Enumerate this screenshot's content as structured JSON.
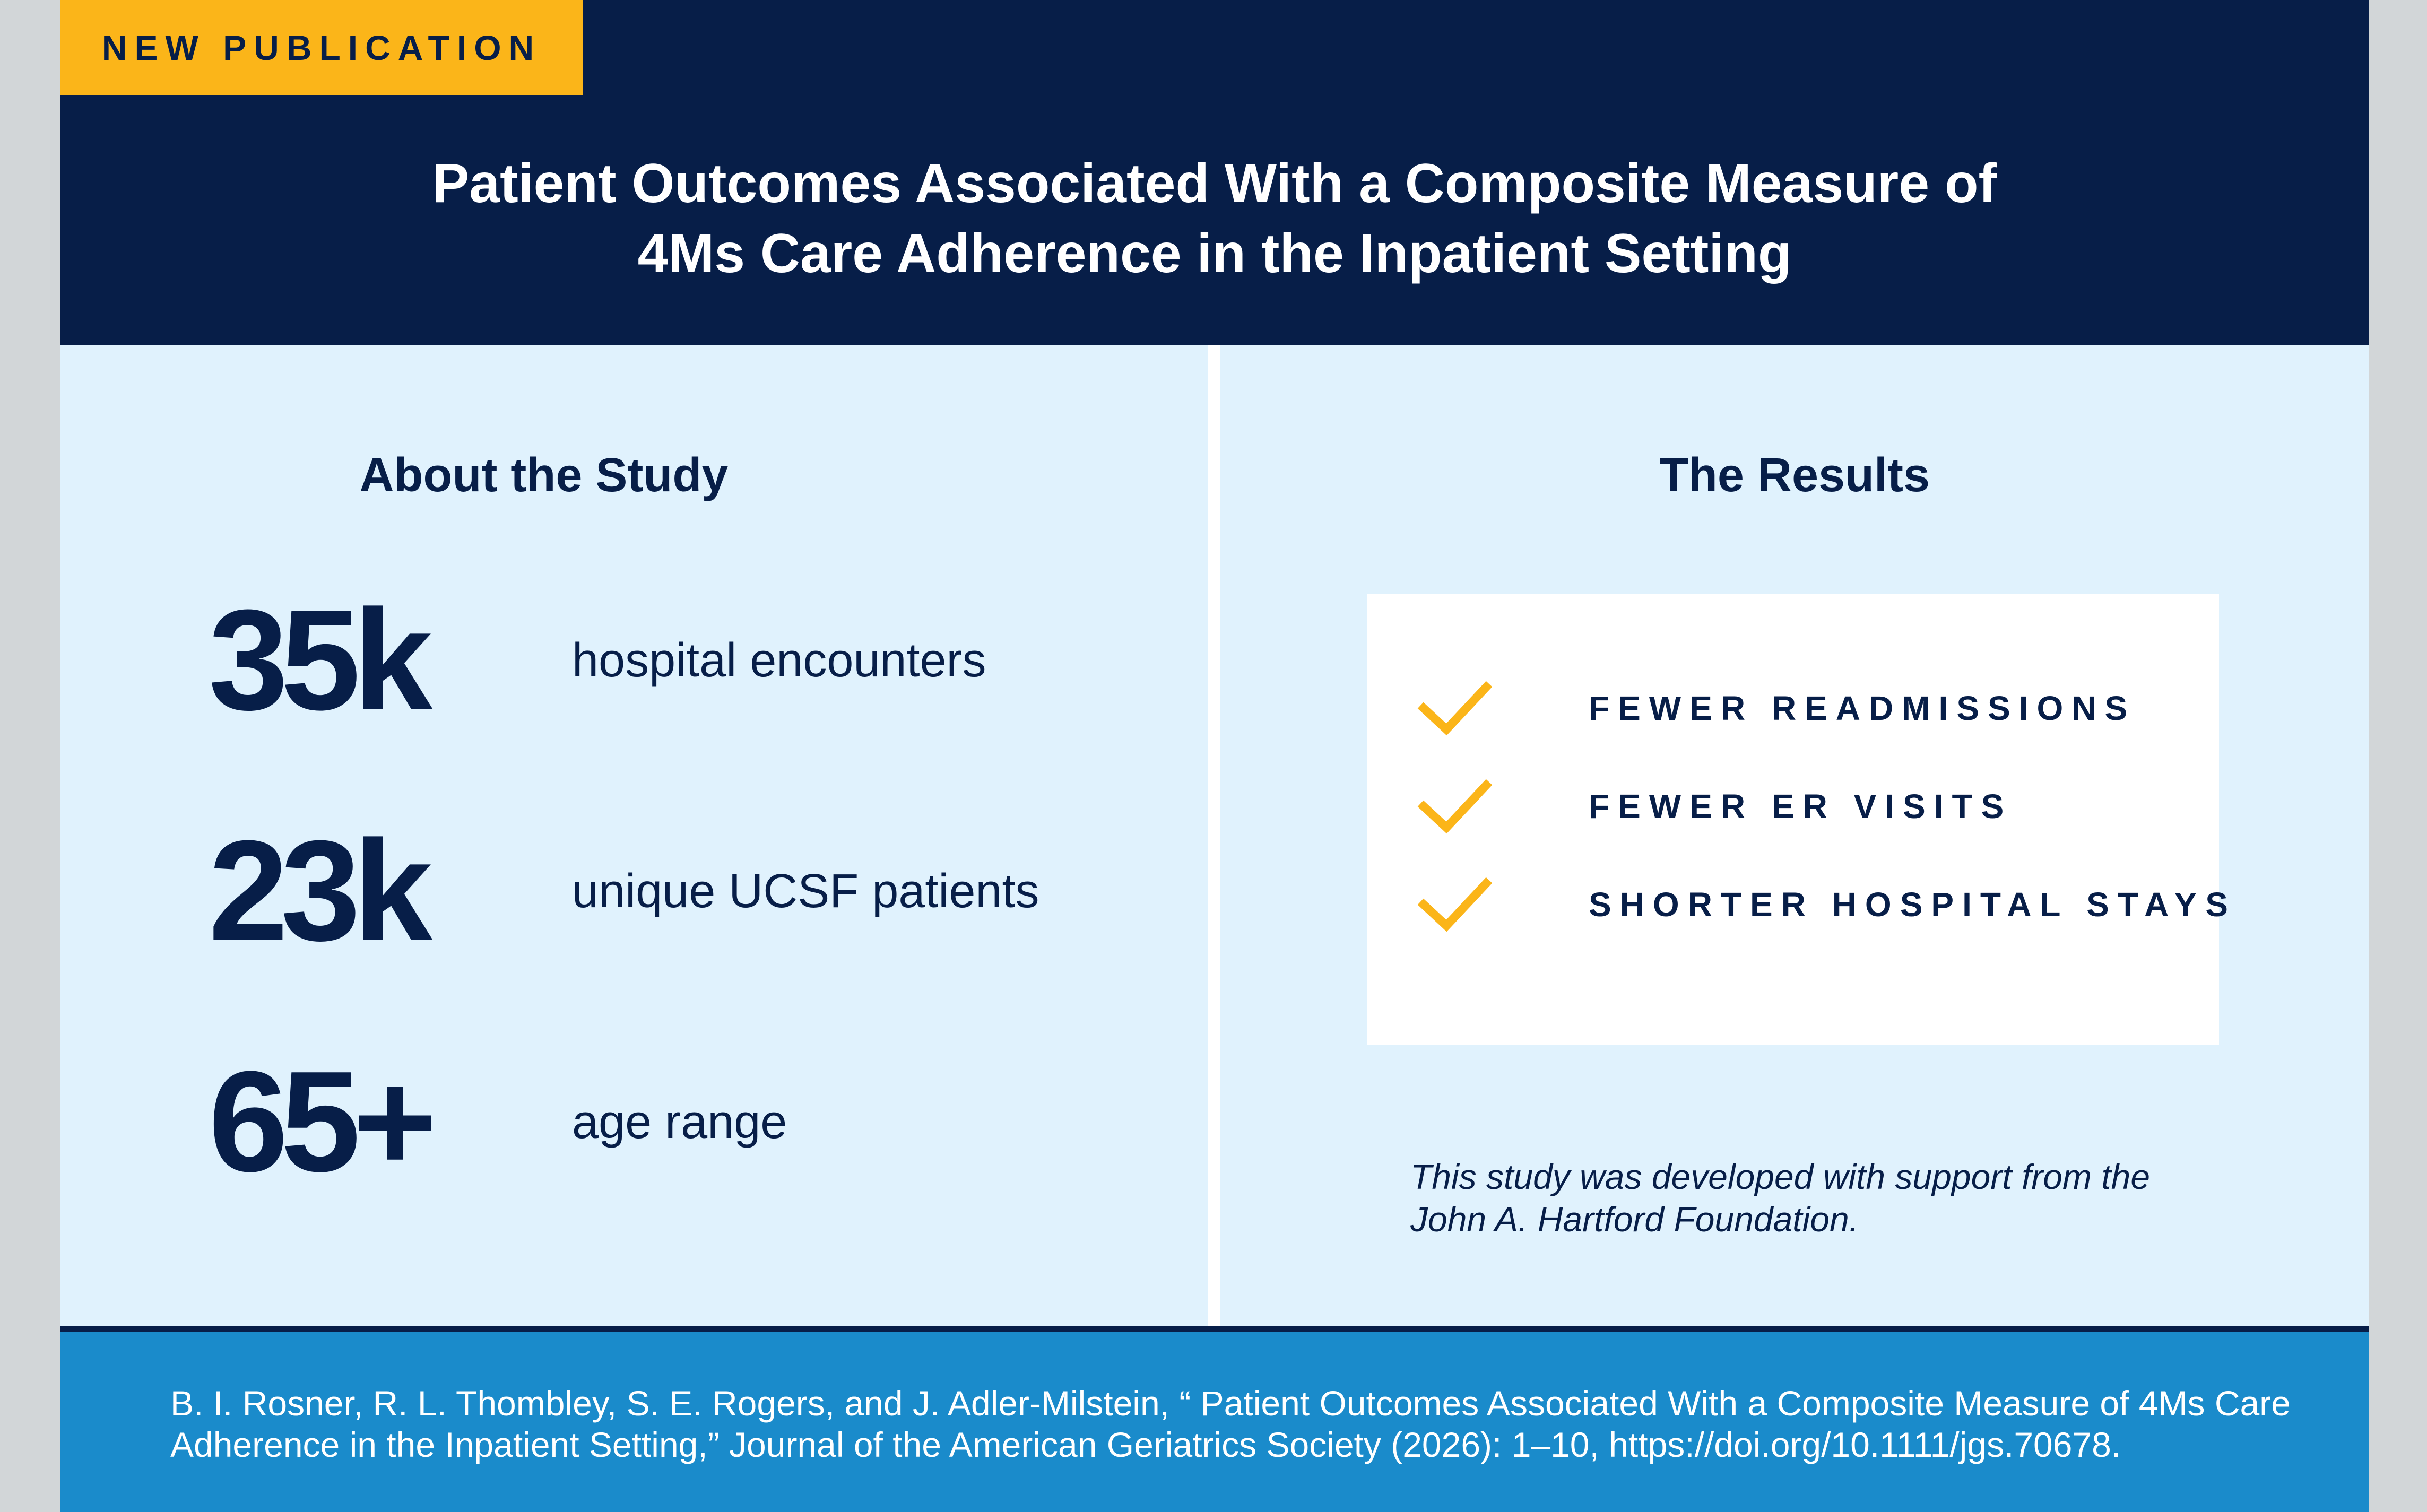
{
  "badge": {
    "label": "NEW PUBLICATION"
  },
  "header": {
    "title_line1": "Patient Outcomes Associated With a Composite Measure of",
    "title_line2": "4Ms Care Adherence in the Inpatient Setting"
  },
  "about": {
    "heading": "About the Study",
    "stats": [
      {
        "number": "35k",
        "label": "hospital encounters"
      },
      {
        "number": "23k",
        "label": "unique UCSF patients"
      },
      {
        "number": "65+",
        "label": "age range"
      }
    ]
  },
  "results": {
    "heading": "The Results",
    "items": [
      {
        "icon": "checkmark-icon",
        "label": "FEWER READMISSIONS"
      },
      {
        "icon": "checkmark-icon",
        "label": "FEWER ER VISITS"
      },
      {
        "icon": "checkmark-icon",
        "label": "SHORTER HOSPITAL STAYS"
      }
    ],
    "support_line1": "This study was developed with support from the",
    "support_line2": "John A. Hartford Foundation."
  },
  "citation": {
    "line1": "B. I. Rosner, R. L. Thombley, S. E. Rogers, and J. Adler-Milstein, “ Patient Outcomes Associated With a Composite Measure of 4Ms Care",
    "line2": "Adherence in the Inpatient Setting,” Journal of the American Geriatrics Society (2026): 1–10, https://doi.org/10.1111/jgs.70678."
  },
  "colors": {
    "navy": "#071e48",
    "gold": "#fbb519",
    "light_blue_bg": "#e0f2fd",
    "footer_blue": "#1a8bcb",
    "outer_gray": "#d2d6d8"
  }
}
